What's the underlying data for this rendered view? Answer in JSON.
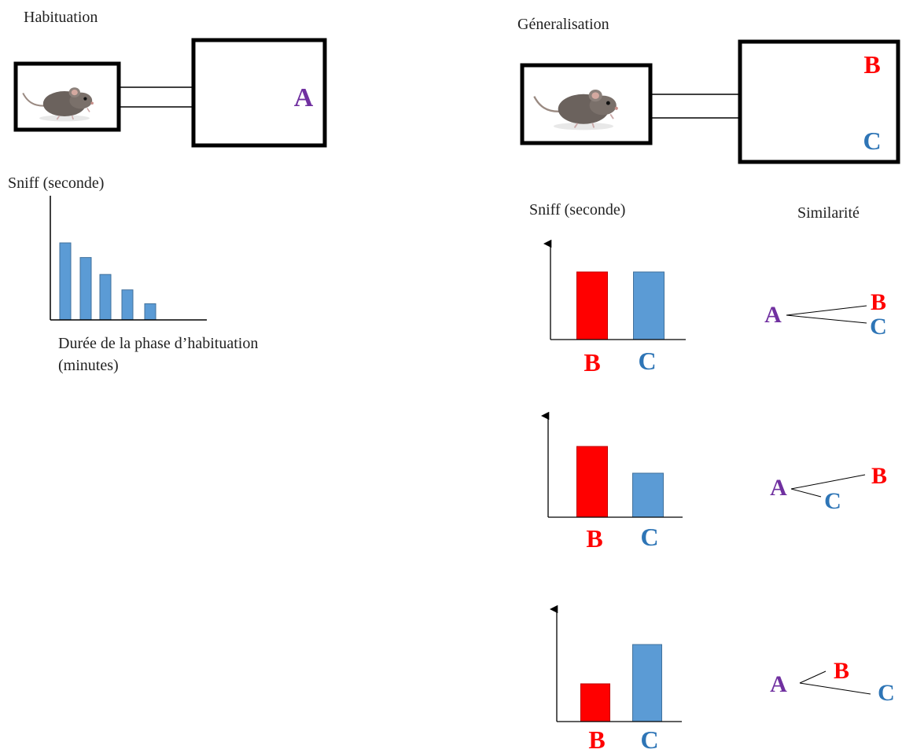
{
  "colors": {
    "A": "#7030a0",
    "B": "#ff0000",
    "C": "#2e75b6",
    "bar_blue": "#5b9bd5",
    "bar_red": "#ff0000"
  },
  "icons": {
    "mouse": "mouse-icon"
  },
  "habituation": {
    "title": "Habituation",
    "odor_label": "A",
    "ylabel": "Sniff (seconde)",
    "xlabel_line1": "Durée de la phase d’habituation",
    "xlabel_line2": "(minutes)"
  },
  "generalisation": {
    "title": "Géneralisation",
    "odor_label_top": "B",
    "odor_label_bottom": "C",
    "sniff_header": "Sniff (seconde)",
    "similarity_header": "Similarité",
    "rows": [
      {
        "bar_labels": [
          "B",
          "C"
        ],
        "similarity": [
          "A",
          "B",
          "C"
        ]
      },
      {
        "bar_labels": [
          "B",
          "C"
        ],
        "similarity": [
          "A",
          "B",
          "C"
        ]
      },
      {
        "bar_labels": [
          "B",
          "C"
        ],
        "similarity": [
          "A",
          "B",
          "C"
        ]
      }
    ]
  },
  "chart_data": [
    {
      "type": "bar",
      "series": [
        {
          "values": [
            10,
            8.1,
            5.9,
            3.9,
            2.1
          ]
        }
      ],
      "ylim": [
        0,
        11
      ]
    },
    {
      "type": "bar",
      "categories": [
        "B",
        "C"
      ],
      "values": [
        8.6,
        8.6
      ],
      "ylim": [
        0,
        12.5
      ]
    },
    {
      "type": "bar",
      "categories": [
        "B",
        "C"
      ],
      "values": [
        9,
        5.6
      ],
      "ylim": [
        0,
        13
      ]
    },
    {
      "type": "bar",
      "categories": [
        "B",
        "C"
      ],
      "values": [
        4.9,
        10
      ],
      "ylim": [
        0,
        14.5
      ]
    }
  ]
}
